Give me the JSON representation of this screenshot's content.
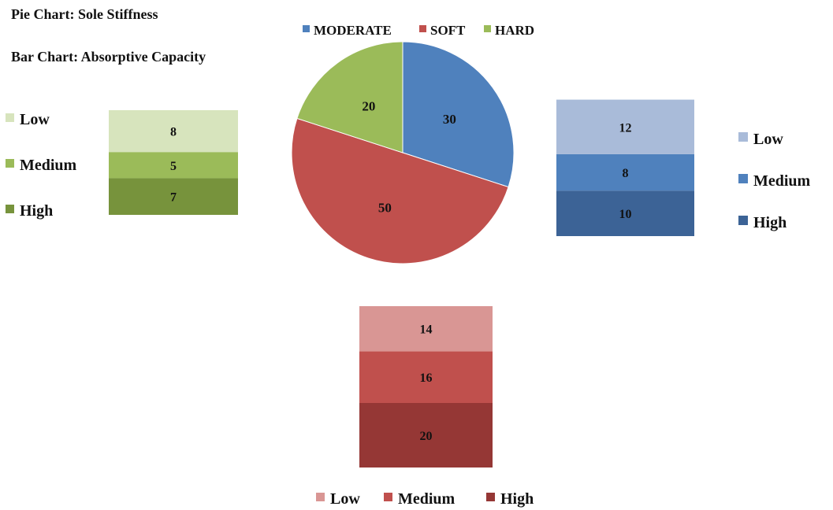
{
  "titles": {
    "pie": "Pie Chart: Sole Stiffness",
    "bar": "Bar Chart: Absorptive Capacity"
  },
  "chart_data": [
    {
      "id": "pie",
      "type": "pie",
      "title": "Pie Chart: Sole Stiffness",
      "categories": [
        "MODERATE",
        "SOFT",
        "HARD"
      ],
      "values": [
        30,
        50,
        20
      ],
      "colors": [
        "#4f81bd",
        "#c0504d",
        "#9bbb59"
      ],
      "legend_position": "top"
    },
    {
      "id": "hard",
      "type": "bar",
      "stacked": true,
      "title": "Bar Chart: Absorptive Capacity",
      "series": [
        {
          "name": "High",
          "values": [
            7
          ],
          "color": "#77933c"
        },
        {
          "name": "Medium",
          "values": [
            5
          ],
          "color": "#9bbb59"
        },
        {
          "name": "Low",
          "values": [
            8
          ],
          "color": "#d7e4bd"
        }
      ],
      "legend_position": "left",
      "legend_order": [
        "Low",
        "Medium",
        "High"
      ]
    },
    {
      "id": "moderate",
      "type": "bar",
      "stacked": true,
      "series": [
        {
          "name": "High",
          "values": [
            10
          ],
          "color": "#3c6396"
        },
        {
          "name": "Medium",
          "values": [
            8
          ],
          "color": "#4f81bd"
        },
        {
          "name": "Low",
          "values": [
            12
          ],
          "color": "#a9bbd9"
        }
      ],
      "legend_position": "right",
      "legend_order": [
        "Low",
        "Medium",
        "High"
      ]
    },
    {
      "id": "soft",
      "type": "bar",
      "stacked": true,
      "series": [
        {
          "name": "High",
          "values": [
            20
          ],
          "color": "#953735"
        },
        {
          "name": "Medium",
          "values": [
            16
          ],
          "color": "#c0504d"
        },
        {
          "name": "Low",
          "values": [
            14
          ],
          "color": "#d99694"
        }
      ],
      "legend_position": "bottom",
      "legend_order": [
        "Low",
        "Medium",
        "High"
      ]
    }
  ]
}
